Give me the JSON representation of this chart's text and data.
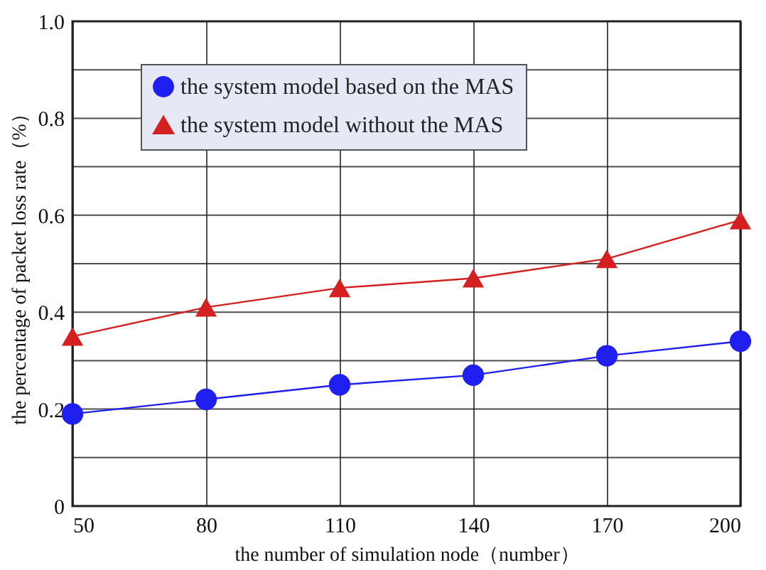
{
  "chart_data": {
    "type": "line",
    "xlabel": "the number of simulation node（number）",
    "ylabel": "the percentage of packet loss rate（%）",
    "x": [
      50,
      80,
      110,
      140,
      170,
      200
    ],
    "series": [
      {
        "name": "the system model based on the MAS",
        "color": "#1f1ff0",
        "marker": "circle",
        "values": [
          0.19,
          0.22,
          0.25,
          0.27,
          0.31,
          0.34
        ]
      },
      {
        "name": "the system model without the MAS",
        "color": "#d42020",
        "marker": "triangle",
        "values": [
          0.35,
          0.41,
          0.45,
          0.47,
          0.51,
          0.59
        ]
      }
    ],
    "xlim": [
      50,
      200
    ],
    "xticks": [
      50,
      80,
      110,
      140,
      170,
      200
    ],
    "ylim": [
      0,
      1.0
    ],
    "yticks": [
      0,
      {
        "value": 0.1,
        "label": null
      },
      0.2,
      {
        "value": 0.3,
        "label": null
      },
      0.4,
      {
        "value": 0.5,
        "label": null
      },
      0.6,
      {
        "value": 0.7,
        "label": null
      },
      0.8,
      {
        "value": 0.9,
        "label": null
      },
      {
        "value": 1.0,
        "label": "1.0"
      }
    ],
    "grid": true,
    "legend": "top left",
    "line_style": "solid"
  }
}
